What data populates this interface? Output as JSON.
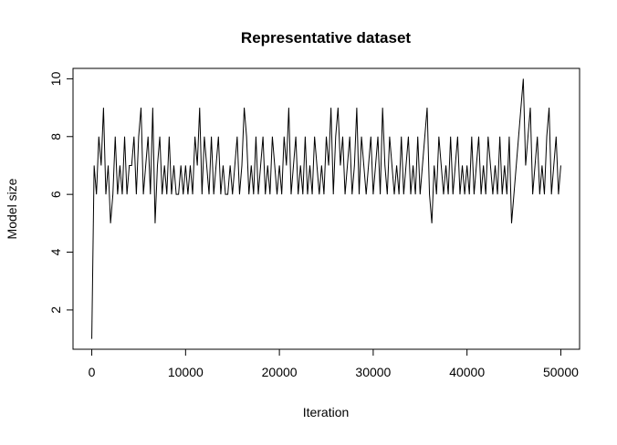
{
  "chart_data": {
    "type": "line",
    "title": "Representative dataset",
    "x_label": "Iteration",
    "y_label": "Model size",
    "xlim": [
      -2000,
      52000
    ],
    "ylim": [
      0.64,
      10.36
    ],
    "xticks": [
      0,
      10000,
      20000,
      30000,
      40000,
      50000
    ],
    "yticks": [
      2,
      4,
      6,
      8,
      10
    ],
    "x": [
      0,
      250,
      500,
      750,
      1000,
      1250,
      1500,
      1750,
      2000,
      2250,
      2500,
      2750,
      3000,
      3250,
      3500,
      3750,
      4000,
      4250,
      4500,
      4750,
      5000,
      5250,
      5500,
      5750,
      6000,
      6250,
      6500,
      6750,
      7000,
      7250,
      7500,
      7750,
      8000,
      8250,
      8500,
      8750,
      9000,
      9250,
      9500,
      9750,
      10000,
      10250,
      10500,
      10750,
      11000,
      11250,
      11500,
      11750,
      12000,
      12250,
      12500,
      12750,
      13000,
      13250,
      13500,
      13750,
      14000,
      14250,
      14500,
      14750,
      15000,
      15250,
      15500,
      15750,
      16000,
      16250,
      16500,
      16750,
      17000,
      17250,
      17500,
      17750,
      18000,
      18250,
      18500,
      18750,
      19000,
      19250,
      19500,
      19750,
      20000,
      20250,
      20500,
      20750,
      21000,
      21250,
      21500,
      21750,
      22000,
      22250,
      22500,
      22750,
      23000,
      23250,
      23500,
      23750,
      24000,
      24250,
      24500,
      24750,
      25000,
      25250,
      25500,
      25750,
      26000,
      26250,
      26500,
      26750,
      27000,
      27250,
      27500,
      27750,
      28000,
      28250,
      28500,
      28750,
      29000,
      29250,
      29500,
      29750,
      30000,
      30250,
      30500,
      30750,
      31000,
      31250,
      31500,
      31750,
      32000,
      32250,
      32500,
      32750,
      33000,
      33250,
      33500,
      33750,
      34000,
      34250,
      34500,
      34750,
      35000,
      35250,
      35500,
      35750,
      36000,
      36250,
      36500,
      36750,
      37000,
      37250,
      37500,
      37750,
      38000,
      38250,
      38500,
      38750,
      39000,
      39250,
      39500,
      39750,
      40000,
      40250,
      40500,
      40750,
      41000,
      41250,
      41500,
      41750,
      42000,
      42250,
      42500,
      42750,
      43000,
      43250,
      43500,
      43750,
      44000,
      44250,
      44500,
      44750,
      45000,
      45250,
      45500,
      45750,
      46000,
      46250,
      46500,
      46750,
      47000,
      47250,
      47500,
      47750,
      48000,
      48250,
      48500,
      48750,
      49000,
      49250,
      49500,
      49750,
      50000
    ],
    "series": [
      {
        "name": "Model size",
        "color": "#000000",
        "values": [
          1,
          7,
          6,
          8,
          7,
          9,
          6,
          7,
          5,
          6,
          8,
          6,
          7,
          6,
          8,
          6,
          7,
          7,
          8,
          6,
          8,
          9,
          6,
          7,
          8,
          6,
          9,
          5,
          7,
          8,
          6,
          7,
          6,
          8,
          6,
          7,
          6,
          6,
          7,
          6,
          7,
          6,
          7,
          6,
          8,
          7,
          9,
          6,
          8,
          7,
          6,
          8,
          6,
          7,
          8,
          6,
          7,
          6,
          6,
          7,
          6,
          7,
          8,
          6,
          7,
          9,
          8,
          6,
          7,
          6,
          8,
          6,
          7,
          8,
          6,
          7,
          6,
          8,
          7,
          6,
          7,
          6,
          8,
          7,
          9,
          6,
          7,
          8,
          6,
          7,
          6,
          8,
          6,
          7,
          6,
          8,
          7,
          6,
          7,
          6,
          8,
          7,
          9,
          6,
          8,
          9,
          7,
          8,
          6,
          7,
          8,
          6,
          7,
          9,
          6,
          8,
          7,
          6,
          7,
          8,
          6,
          7,
          8,
          6,
          9,
          7,
          6,
          8,
          7,
          6,
          7,
          6,
          8,
          6,
          7,
          8,
          6,
          7,
          6,
          8,
          6,
          7,
          8,
          9,
          6,
          5,
          7,
          6,
          8,
          7,
          6,
          7,
          6,
          8,
          6,
          7,
          8,
          6,
          7,
          6,
          7,
          6,
          8,
          6,
          7,
          8,
          6,
          7,
          6,
          8,
          7,
          6,
          7,
          6,
          8,
          6,
          7,
          6,
          8,
          5,
          6,
          7,
          8,
          9,
          10,
          7,
          8,
          9,
          6,
          7,
          8,
          6,
          7,
          6,
          8,
          9,
          6,
          7,
          8,
          6,
          7
        ]
      }
    ]
  }
}
